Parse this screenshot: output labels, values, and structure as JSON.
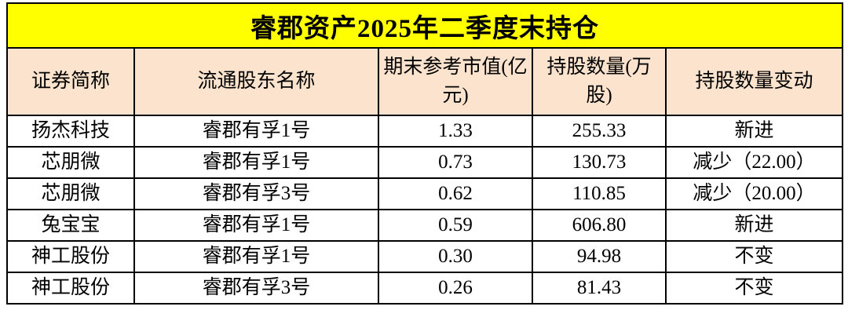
{
  "chart_data": {
    "type": "table",
    "title": "睿郡资产2025年二季度末持仓",
    "columns": [
      "证券简称",
      "流通股东名称",
      "期末参考市值(亿元)",
      "持股数量(万股)",
      "持股数量变动"
    ],
    "rows": [
      [
        "扬杰科技",
        "睿郡有孚1号",
        "1.33",
        "255.33",
        "新进"
      ],
      [
        "芯朋微",
        "睿郡有孚1号",
        "0.73",
        "130.73",
        "减少（22.00）"
      ],
      [
        "芯朋微",
        "睿郡有孚3号",
        "0.62",
        "110.85",
        "减少（20.00）"
      ],
      [
        "兔宝宝",
        "睿郡有孚1号",
        "0.59",
        "606.80",
        "新进"
      ],
      [
        "神工股份",
        "睿郡有孚1号",
        "0.30",
        "94.98",
        "不变"
      ],
      [
        "神工股份",
        "睿郡有孚3号",
        "0.26",
        "81.43",
        "不变"
      ]
    ]
  },
  "colors": {
    "title_bg": "#FFFF00",
    "header_bg": "#FBE3CD",
    "border": "#000000",
    "text": "#000000",
    "page_bg": "#FFFFFF"
  }
}
